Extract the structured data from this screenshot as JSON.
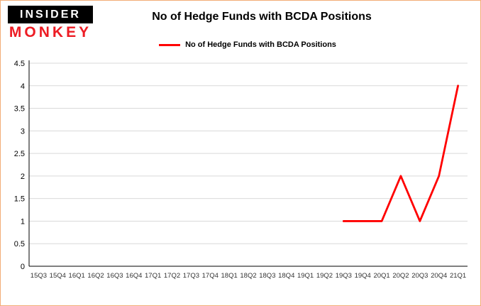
{
  "logo": {
    "line1": "INSIDER",
    "line2": "MONKEY"
  },
  "title": "No of Hedge Funds with BCDA Positions",
  "legend": {
    "label": "No of Hedge Funds with BCDA Positions",
    "color": "#ff0000"
  },
  "colors": {
    "series": "#ff0000",
    "grid": "#d9d9d9",
    "axis": "#000000",
    "frame_border": "#f2ad77",
    "logo_red": "#ed1c24"
  },
  "chart_data": {
    "type": "line",
    "title": "No of Hedge Funds with BCDA Positions",
    "xlabel": "",
    "ylabel": "",
    "ylim": [
      0,
      4.5
    ],
    "ytick_step": 0.5,
    "grid": true,
    "legend_position": "top",
    "categories": [
      "15Q3",
      "15Q4",
      "16Q1",
      "16Q2",
      "16Q3",
      "16Q4",
      "17Q1",
      "17Q2",
      "17Q3",
      "17Q4",
      "18Q1",
      "18Q2",
      "18Q3",
      "18Q4",
      "19Q1",
      "19Q2",
      "19Q3",
      "19Q4",
      "20Q1",
      "20Q2",
      "20Q3",
      "20Q4",
      "21Q1"
    ],
    "series": [
      {
        "name": "No of Hedge Funds with BCDA Positions",
        "color": "#ff0000",
        "values": [
          null,
          null,
          null,
          null,
          null,
          null,
          null,
          null,
          null,
          null,
          null,
          null,
          null,
          null,
          null,
          null,
          1,
          1,
          1,
          2,
          1,
          2,
          4
        ]
      }
    ]
  }
}
